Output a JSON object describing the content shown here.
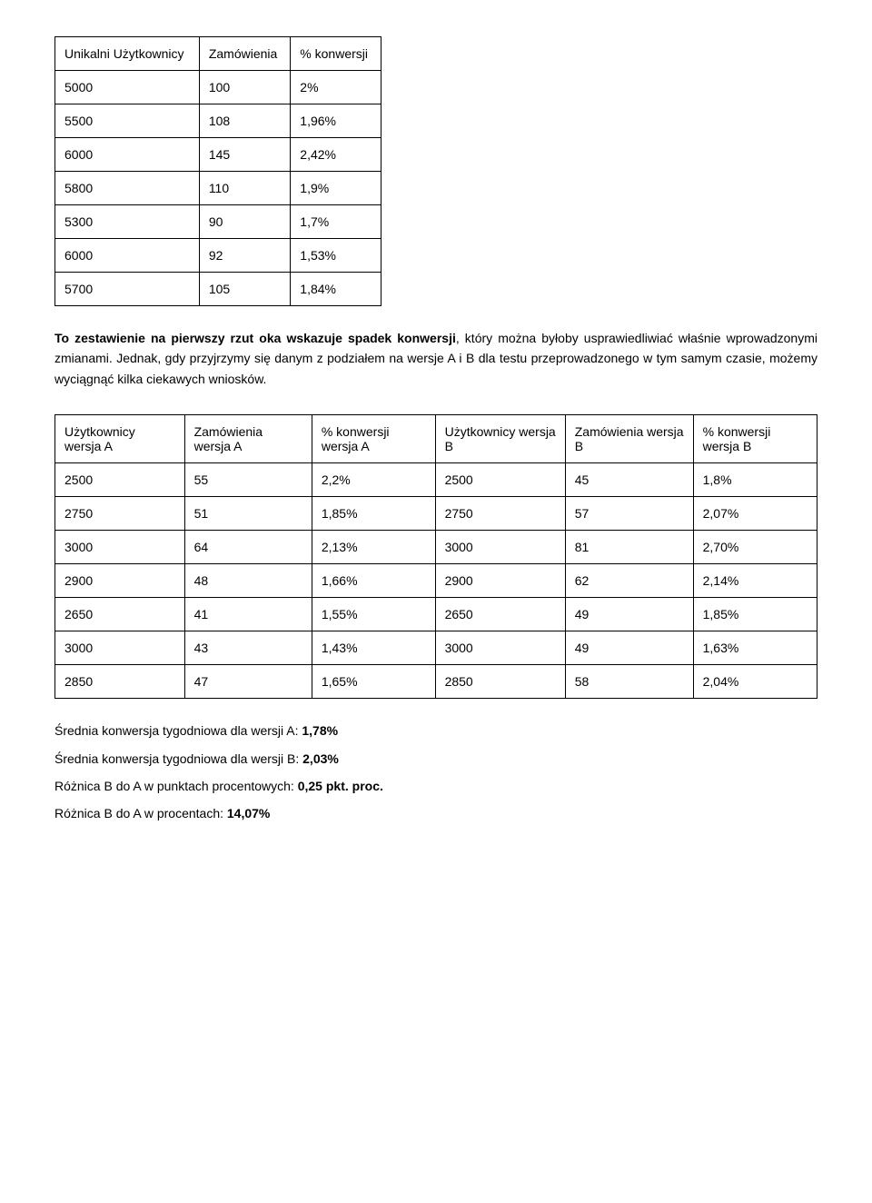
{
  "table1": {
    "headers": [
      "Unikalni Użytkownicy",
      "Zamówienia",
      "% konwersji"
    ],
    "rows": [
      [
        "5000",
        "100",
        "2%"
      ],
      [
        "5500",
        "108",
        "1,96%"
      ],
      [
        "6000",
        "145",
        "2,42%"
      ],
      [
        "5800",
        "110",
        "1,9%"
      ],
      [
        "5300",
        "90",
        "1,7%"
      ],
      [
        "6000",
        "92",
        "1,53%"
      ],
      [
        "5700",
        "105",
        "1,84%"
      ]
    ]
  },
  "paragraph": {
    "lead": "To zestawienie na pierwszy rzut oka wskazuje spadek konwersji",
    "rest": ", który można byłoby usprawiedliwiać właśnie wprowadzonymi zmianami. Jednak, gdy przyjrzymy się danym z podziałem na wersje A i B dla testu przeprowadzonego w tym samym czasie, możemy wyciągnąć kilka ciekawych wniosków."
  },
  "table2": {
    "headers": [
      "Użytkownicy wersja A",
      "Zamówienia wersja A",
      "% konwersji wersja A",
      "Użytkownicy wersja B",
      "Zamówienia wersja B",
      "% konwersji wersja B"
    ],
    "rows": [
      [
        "2500",
        "55",
        "2,2%",
        "2500",
        "45",
        "1,8%"
      ],
      [
        "2750",
        "51",
        "1,85%",
        "2750",
        "57",
        "2,07%"
      ],
      [
        "3000",
        "64",
        "2,13%",
        "3000",
        "81",
        "2,70%"
      ],
      [
        "2900",
        "48",
        "1,66%",
        "2900",
        "62",
        "2,14%"
      ],
      [
        "2650",
        "41",
        "1,55%",
        "2650",
        "49",
        "1,85%"
      ],
      [
        "3000",
        "43",
        "1,43%",
        "3000",
        "49",
        "1,63%"
      ],
      [
        "2850",
        "47",
        "1,65%",
        "2850",
        "58",
        "2,04%"
      ]
    ]
  },
  "summary": {
    "line1_label": "Średnia konwersja tygodniowa dla wersji A: ",
    "line1_value": "1,78%",
    "line2_label": "Średnia konwersja tygodniowa dla wersji B: ",
    "line2_value": "2,03%",
    "line3_label": "Różnica B do A w punktach procentowych: ",
    "line3_value": "0,25 pkt. proc.",
    "line4_label": "Różnica B do A w procentach: ",
    "line4_value": "14,07%"
  }
}
